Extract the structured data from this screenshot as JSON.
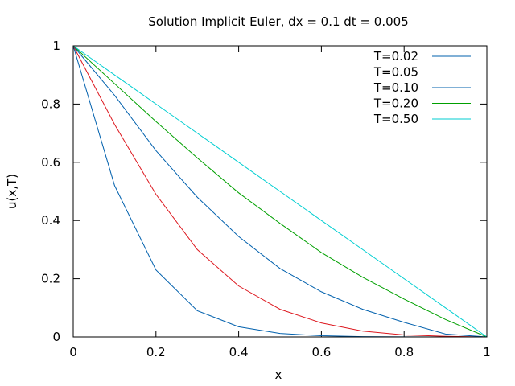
{
  "chart_data": {
    "type": "line",
    "title": "Solution Implicit Euler, dx = 0.1 dt = 0.005",
    "xlabel": "x",
    "ylabel": "u(x,T)",
    "xlim": [
      0,
      1
    ],
    "ylim": [
      0,
      1
    ],
    "xticks": [
      "0",
      "0.2",
      "0.4",
      "0.6",
      "0.8",
      "1"
    ],
    "yticks": [
      "0",
      "0.2",
      "0.4",
      "0.6",
      "0.8",
      "1"
    ],
    "xtick_values": [
      0,
      0.2,
      0.4,
      0.6,
      0.8,
      1
    ],
    "ytick_values": [
      0,
      0.2,
      0.4,
      0.6,
      0.8,
      1
    ],
    "legend_position": "top-right",
    "x": [
      0,
      0.1,
      0.2,
      0.3,
      0.4,
      0.5,
      0.6,
      0.7,
      0.8,
      0.9,
      1.0
    ],
    "series": [
      {
        "name": "T=0.02",
        "color": "#0060ad",
        "values": [
          1,
          0.52,
          0.23,
          0.09,
          0.035,
          0.012,
          0.004,
          0.001,
          0.0003,
          0.0001,
          0
        ]
      },
      {
        "name": "T=0.05",
        "color": "#dd181f",
        "values": [
          1,
          0.73,
          0.49,
          0.3,
          0.175,
          0.095,
          0.048,
          0.02,
          0.007,
          0.002,
          0
        ]
      },
      {
        "name": "T=0.10",
        "color": "#0060ad",
        "values": [
          1,
          0.83,
          0.64,
          0.48,
          0.345,
          0.235,
          0.155,
          0.095,
          0.05,
          0.01,
          0
        ]
      },
      {
        "name": "T=0.20",
        "color": "#00a000",
        "values": [
          1,
          0.87,
          0.74,
          0.615,
          0.495,
          0.39,
          0.29,
          0.205,
          0.13,
          0.06,
          0
        ]
      },
      {
        "name": "T=0.50",
        "color": "#00ced1",
        "values": [
          1,
          0.9,
          0.8,
          0.7,
          0.6,
          0.5,
          0.4,
          0.3,
          0.2,
          0.1,
          0
        ]
      }
    ]
  }
}
